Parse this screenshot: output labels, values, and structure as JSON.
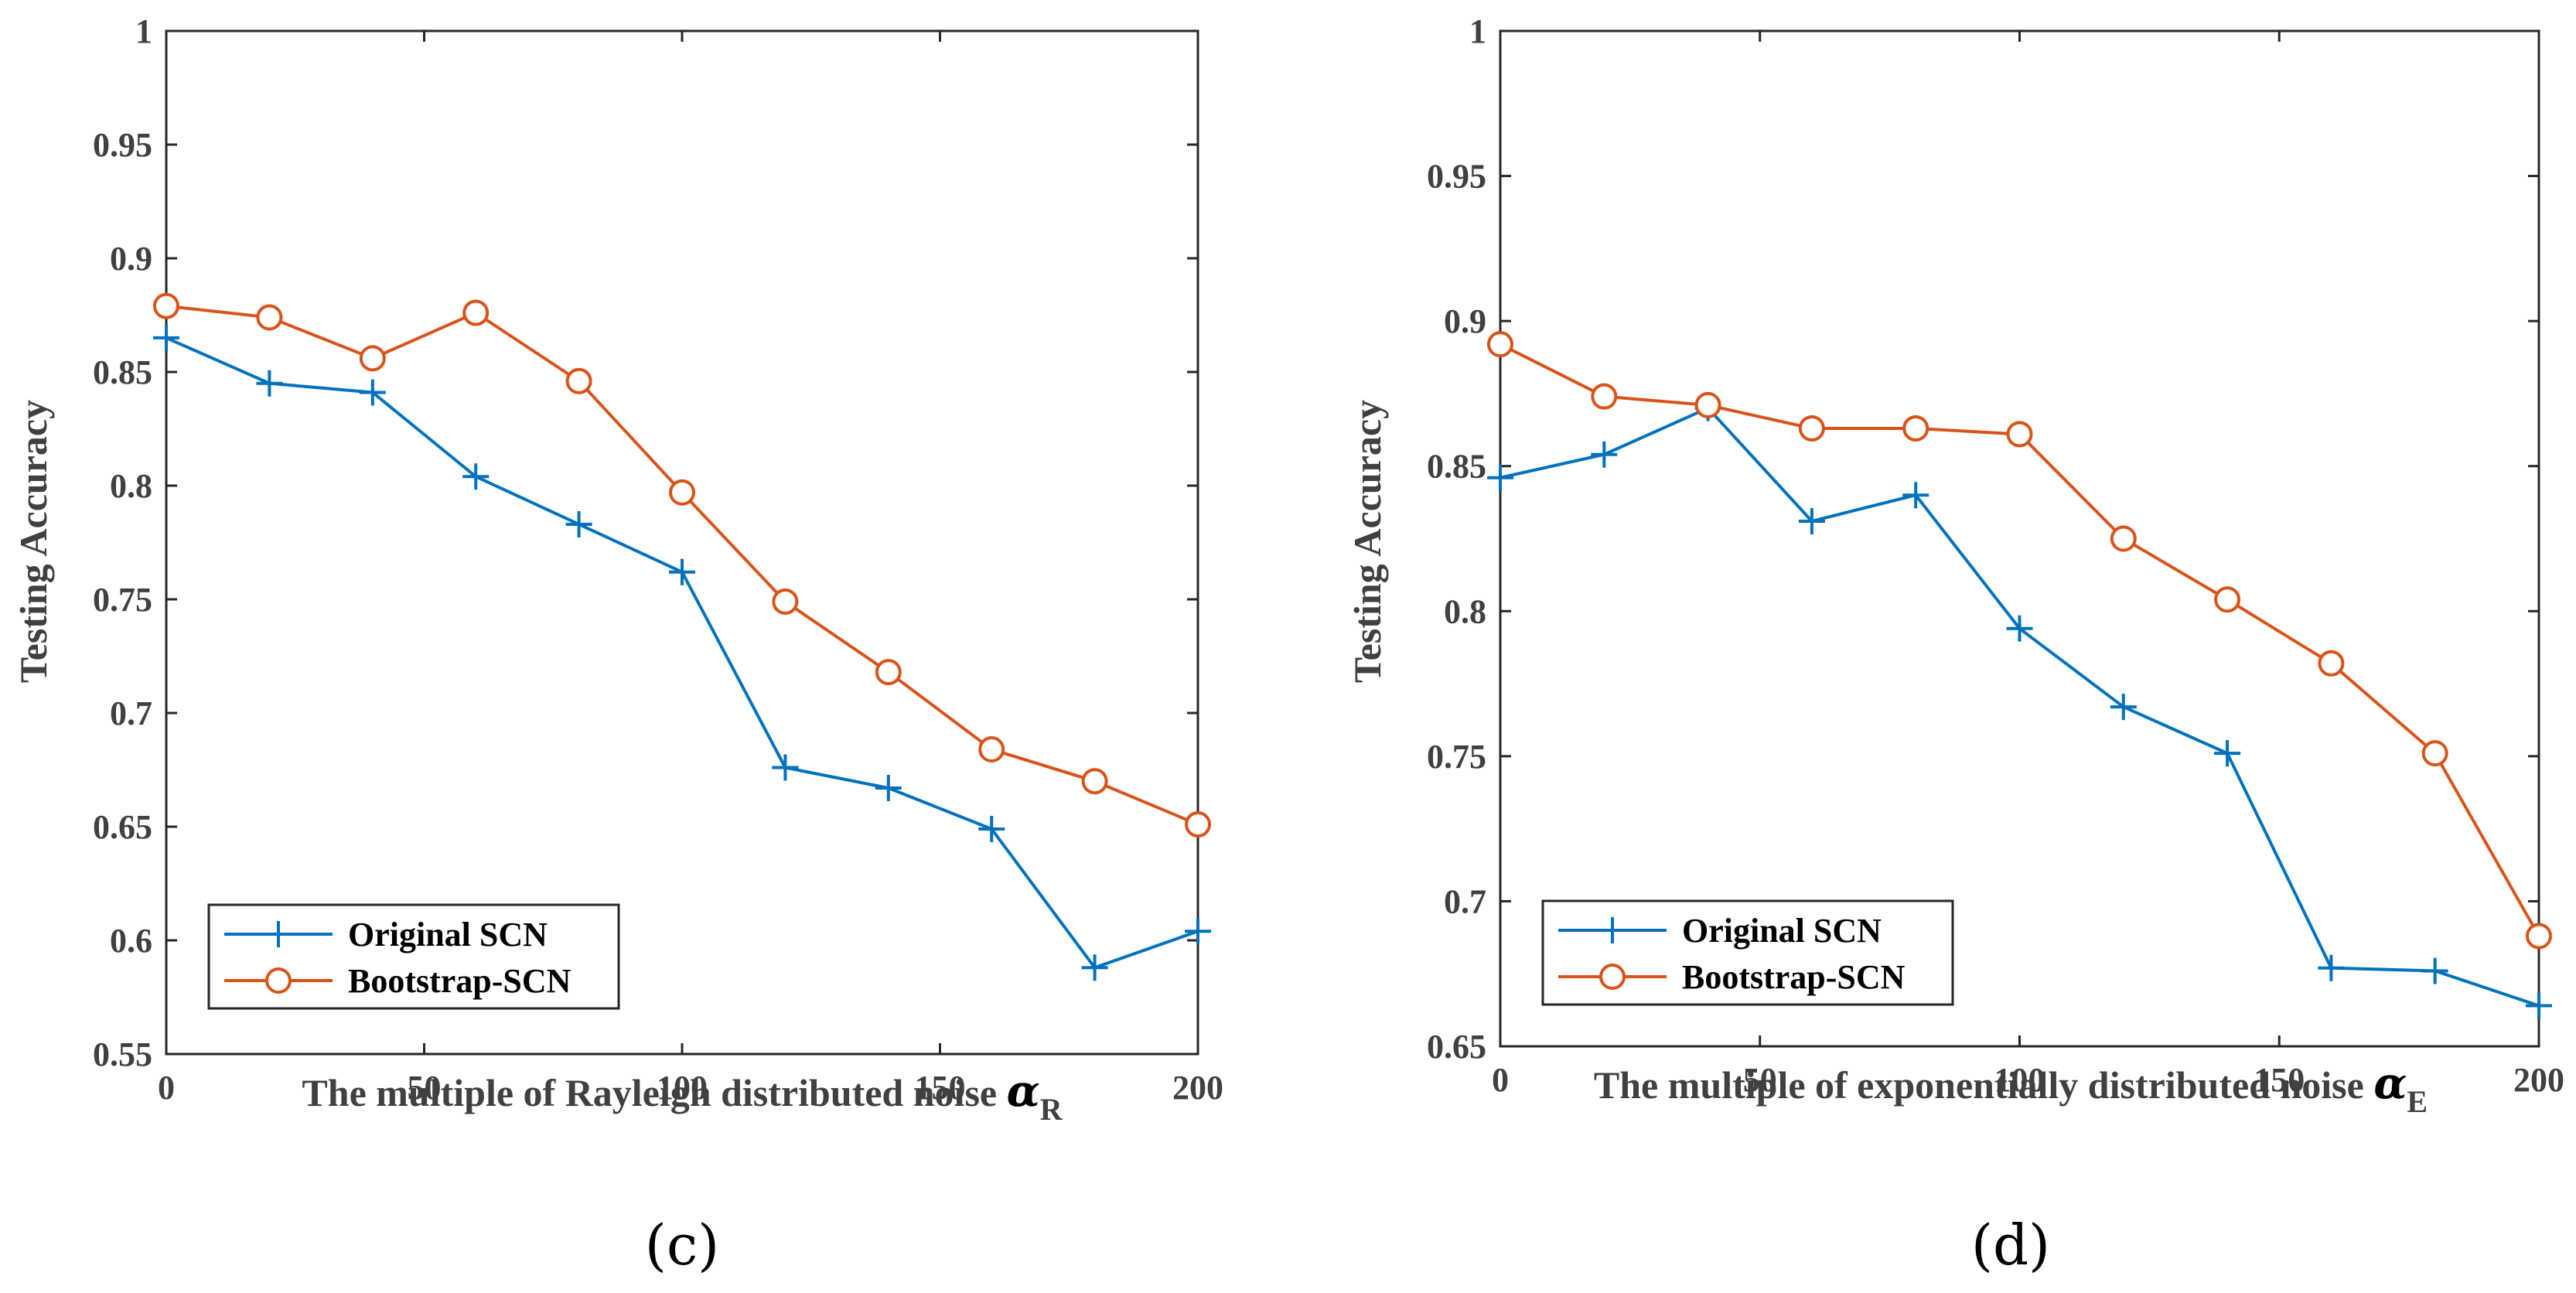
{
  "chart_data": [
    {
      "type": "line",
      "panel_label": "(c)",
      "x": [
        0,
        20,
        40,
        60,
        80,
        100,
        120,
        140,
        160,
        180,
        200
      ],
      "series": [
        {
          "name": "Original SCN",
          "color": "#0072BD",
          "marker": "plus",
          "values": [
            0.865,
            0.845,
            0.841,
            0.804,
            0.783,
            0.762,
            0.676,
            0.667,
            0.649,
            0.588,
            0.604
          ]
        },
        {
          "name": "Bootstrap-SCN",
          "color": "#D95319",
          "marker": "circle",
          "values": [
            0.879,
            0.874,
            0.856,
            0.876,
            0.846,
            0.797,
            0.749,
            0.718,
            0.684,
            0.67,
            0.651
          ]
        }
      ],
      "xlabel": "The multiple of Rayleigh distributed noise",
      "xlabel_symbol": "α",
      "xlabel_subscript": "R",
      "ylabel": "Testing Accuracy",
      "xlim": [
        0,
        200
      ],
      "ylim": [
        0.55,
        1
      ],
      "xticks": [
        0,
        50,
        100,
        150,
        200
      ],
      "xtick_labels": [
        "0",
        "50",
        "100",
        "150",
        "200"
      ],
      "yticks": [
        0.55,
        0.6,
        0.65,
        0.7,
        0.75,
        0.8,
        0.85,
        0.9,
        0.95,
        1
      ],
      "ytick_labels": [
        "0.55",
        "0.6",
        "0.65",
        "0.7",
        "0.75",
        "0.8",
        "0.85",
        "0.9",
        "0.95",
        "1"
      ],
      "legend_position": "bottom-left"
    },
    {
      "type": "line",
      "panel_label": "(d)",
      "x": [
        0,
        20,
        40,
        60,
        80,
        100,
        120,
        140,
        160,
        180,
        200
      ],
      "series": [
        {
          "name": "Original SCN",
          "color": "#0072BD",
          "marker": "plus",
          "values": [
            0.846,
            0.854,
            0.87,
            0.831,
            0.84,
            0.794,
            0.767,
            0.751,
            0.677,
            0.676,
            0.664
          ]
        },
        {
          "name": "Bootstrap-SCN",
          "color": "#D95319",
          "marker": "circle",
          "values": [
            0.892,
            0.874,
            0.871,
            0.863,
            0.863,
            0.861,
            0.825,
            0.804,
            0.782,
            0.751,
            0.688
          ]
        }
      ],
      "xlabel": "The multiple of exponentially distributed noise",
      "xlabel_symbol": "α",
      "xlabel_subscript": "E",
      "ylabel": "Testing Accuracy",
      "xlim": [
        0,
        200
      ],
      "ylim": [
        0.65,
        1
      ],
      "xticks": [
        0,
        50,
        100,
        150,
        200
      ],
      "xtick_labels": [
        "0",
        "50",
        "100",
        "150",
        "200"
      ],
      "yticks": [
        0.65,
        0.7,
        0.75,
        0.8,
        0.85,
        0.9,
        0.95,
        1
      ],
      "ytick_labels": [
        "0.65",
        "0.7",
        "0.75",
        "0.8",
        "0.85",
        "0.9",
        "0.95",
        "1"
      ],
      "legend_position": "bottom-left"
    }
  ]
}
